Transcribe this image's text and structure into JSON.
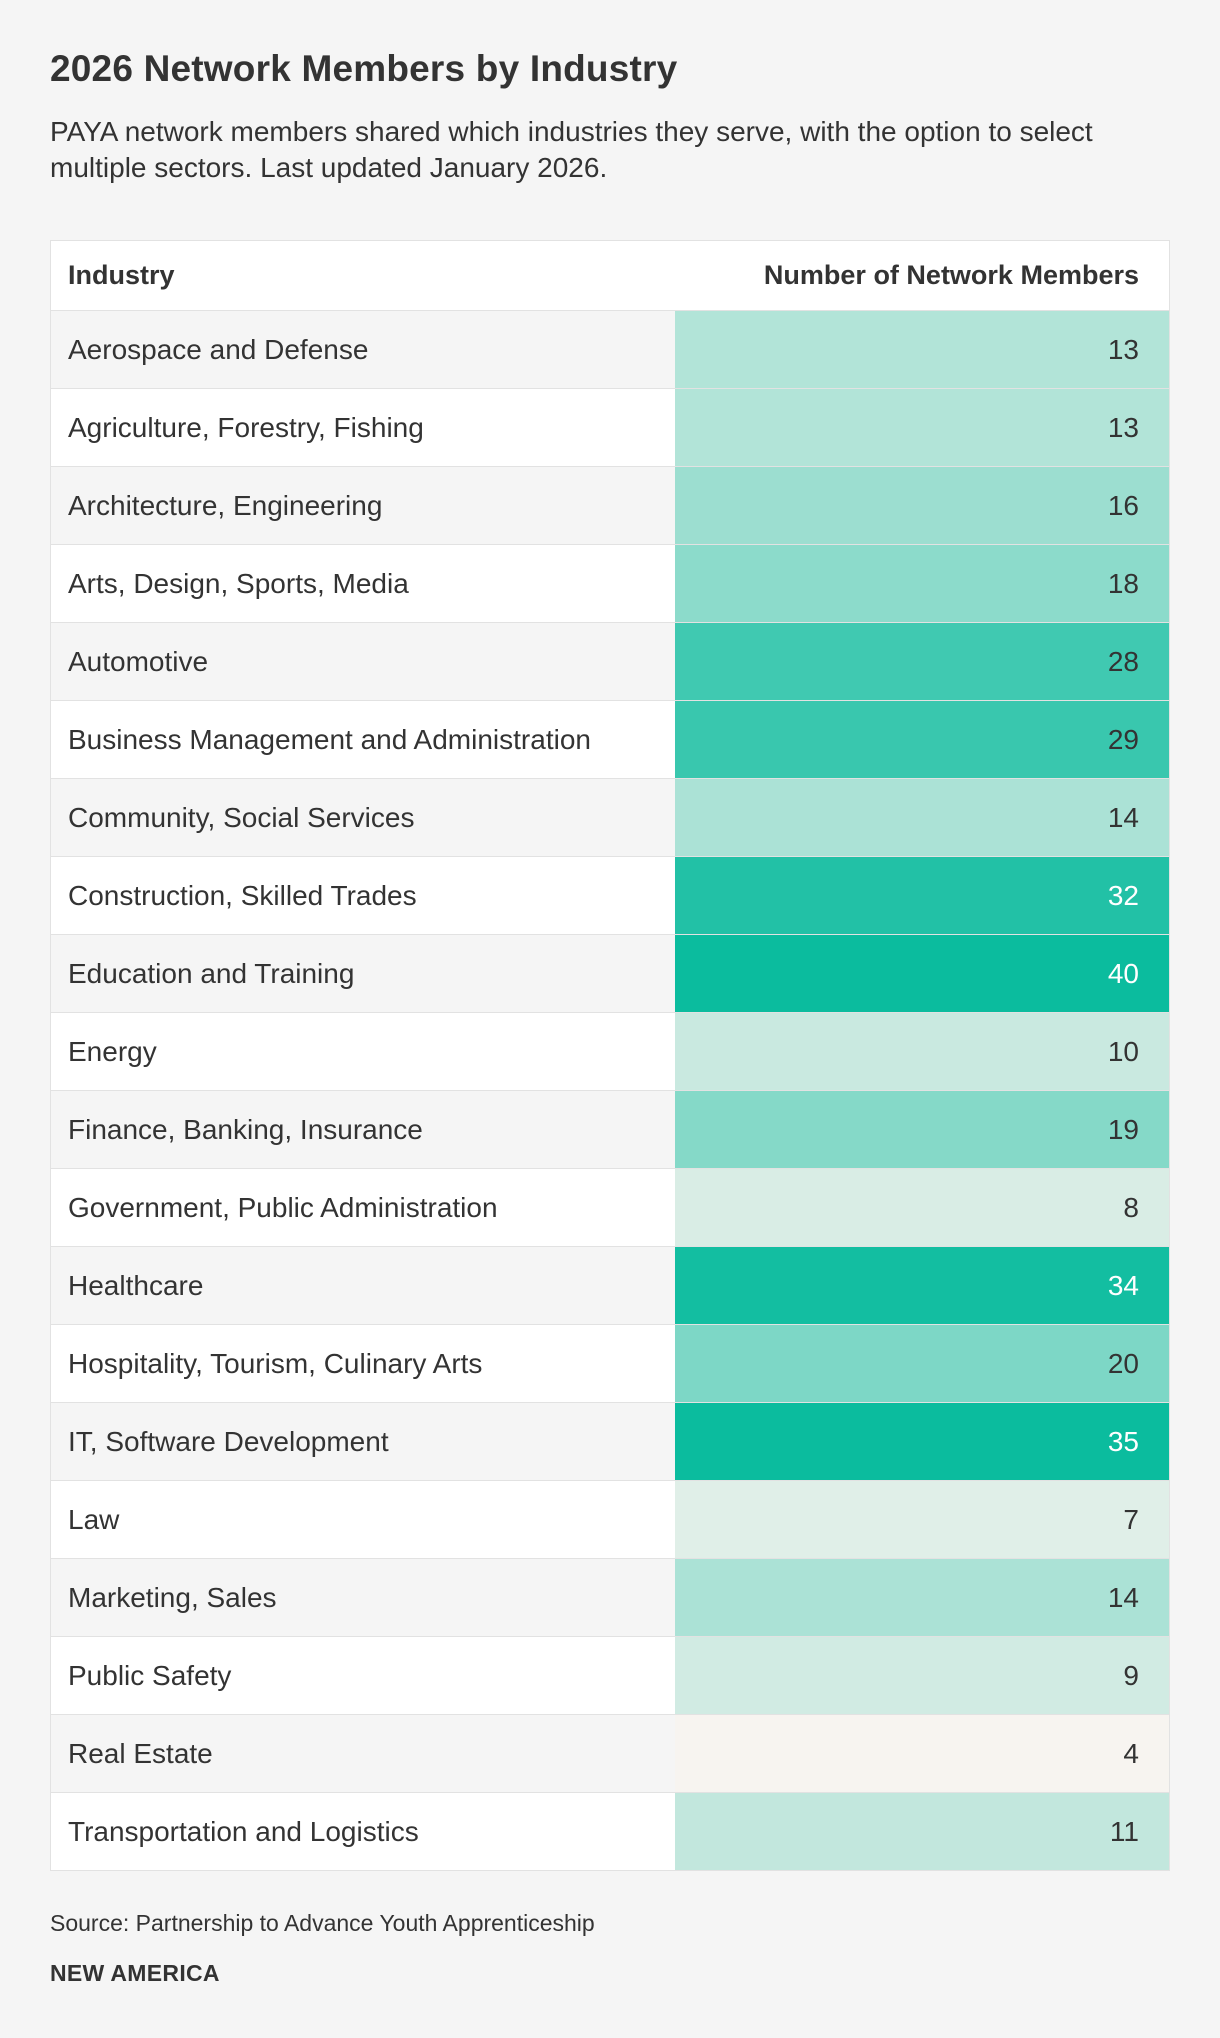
{
  "title": "2026 Network Members by Industry",
  "subtitle": "PAYA network members shared which industries they serve, with the option to select multiple sectors. Last updated January 2026.",
  "source": "Source: Partnership to Advance Youth Apprenticeship",
  "brand": "NEW AMERICA",
  "colors": {
    "low": "#f7f4f0",
    "high": "#0bbc9e",
    "text_dark": "#333333",
    "text_light": "#ffffff"
  },
  "chart_data": {
    "type": "table",
    "title": "2026 Network Members by Industry",
    "columns": [
      "Industry",
      "Number of Network Members"
    ],
    "rows": [
      {
        "industry": "Aerospace and Defense",
        "value": 13
      },
      {
        "industry": "Agriculture, Forestry, Fishing",
        "value": 13
      },
      {
        "industry": "Architecture, Engineering",
        "value": 16
      },
      {
        "industry": "Arts, Design, Sports, Media",
        "value": 18
      },
      {
        "industry": "Automotive",
        "value": 28
      },
      {
        "industry": "Business Management and Administration",
        "value": 29
      },
      {
        "industry": "Community, Social Services",
        "value": 14
      },
      {
        "industry": "Construction, Skilled Trades",
        "value": 32
      },
      {
        "industry": "Education and Training",
        "value": 40
      },
      {
        "industry": "Energy",
        "value": 10
      },
      {
        "industry": "Finance, Banking, Insurance",
        "value": 19
      },
      {
        "industry": "Government, Public Administration",
        "value": 8
      },
      {
        "industry": "Healthcare",
        "value": 34
      },
      {
        "industry": "Hospitality, Tourism, Culinary Arts",
        "value": 20
      },
      {
        "industry": "IT, Software Development",
        "value": 35
      },
      {
        "industry": "Law",
        "value": 7
      },
      {
        "industry": "Marketing, Sales",
        "value": 14
      },
      {
        "industry": "Public Safety",
        "value": 9
      },
      {
        "industry": "Real Estate",
        "value": 4
      },
      {
        "industry": "Transportation and Logistics",
        "value": 11
      }
    ],
    "color_scale_range": [
      4,
      35
    ]
  }
}
